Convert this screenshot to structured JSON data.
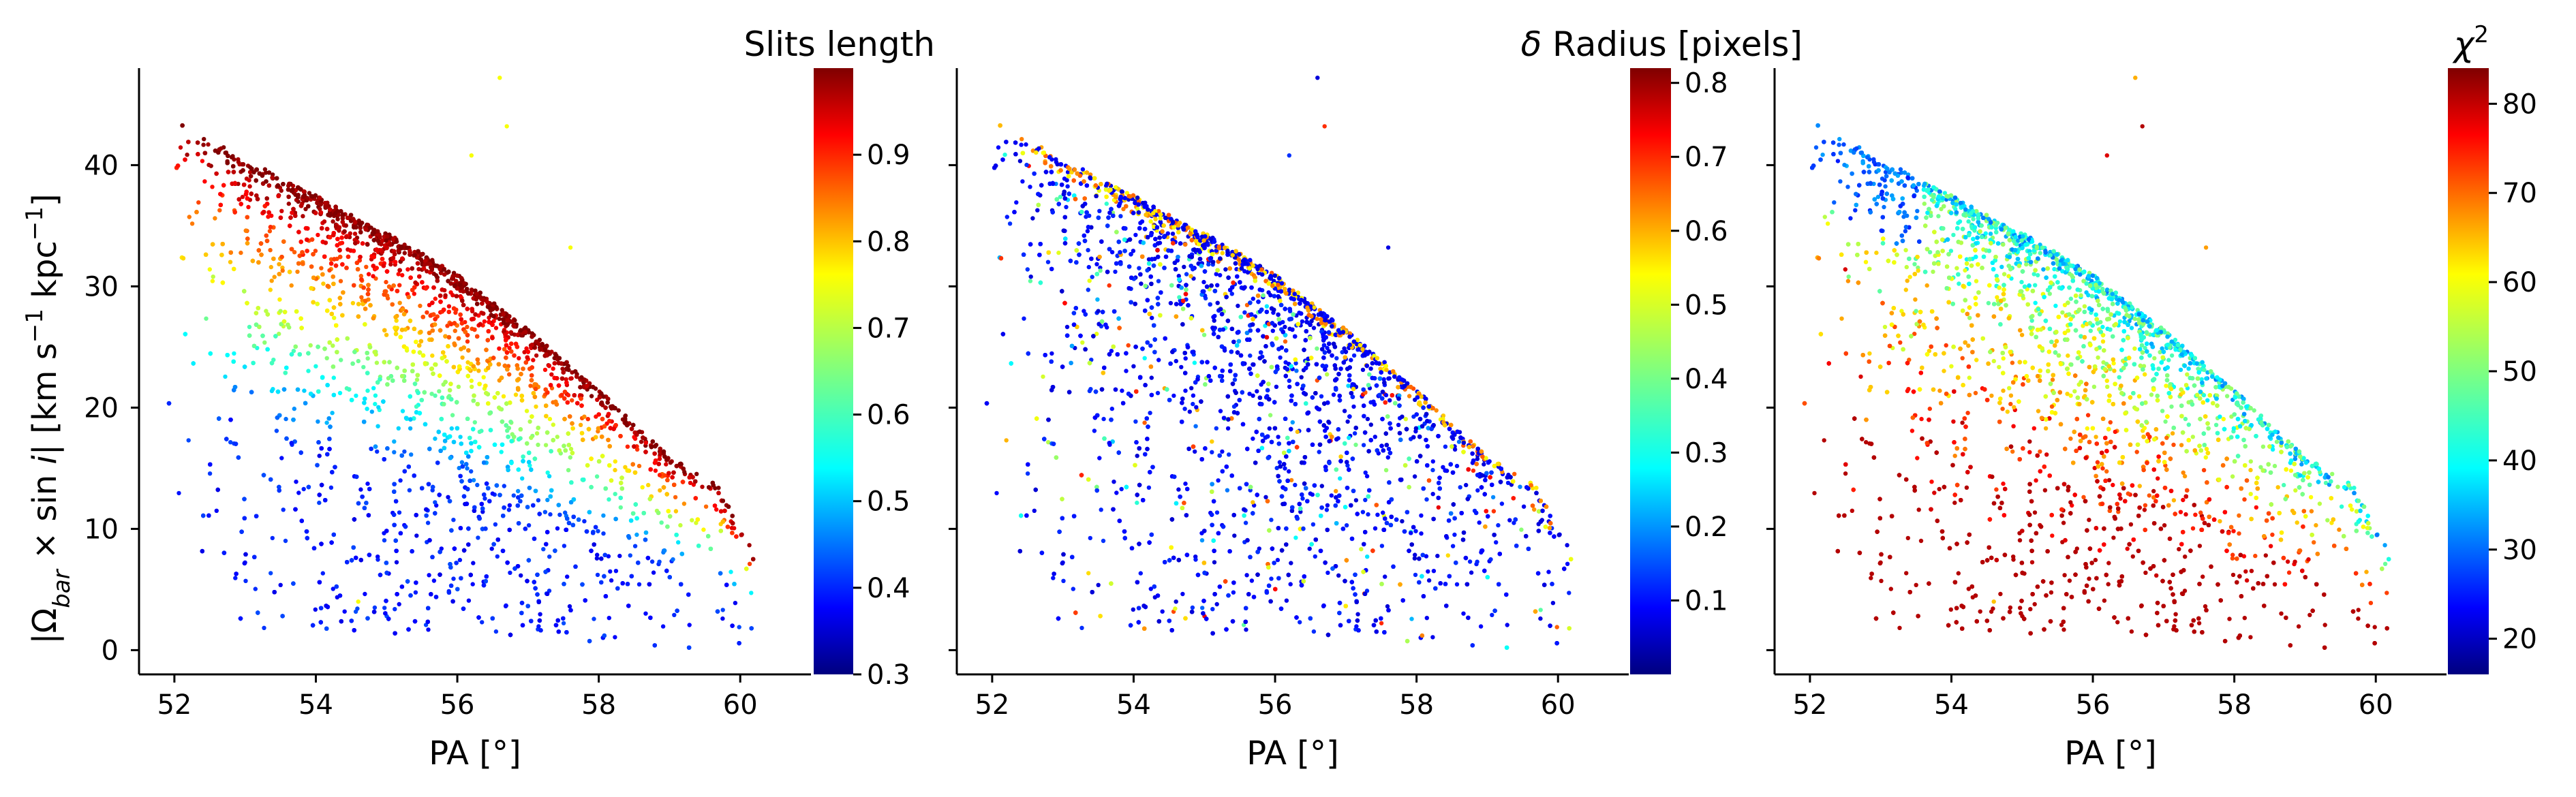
{
  "figure": {
    "ylabel": "|Ω",
    "ylabel_sub": "bar",
    "ylabel_mid": " × sin ",
    "ylabel_i": "i",
    "ylabel_units": "|  [km s",
    "ylabel_exp1": "−1",
    "ylabel_kpc": " kpc",
    "ylabel_exp2": "−1",
    "ylabel_close": "]"
  },
  "chart_data": [
    {
      "type": "scatter",
      "xlabel": "PA [°]",
      "ylabel": "|Ωbar × sin i|  [km s−1 kpc−1]",
      "xlim": [
        51.5,
        61.0
      ],
      "ylim": [
        -2,
        48
      ],
      "xticks": [
        "52",
        "54",
        "56",
        "58",
        "60"
      ],
      "yticks": [
        "0",
        "10",
        "20",
        "30",
        "40"
      ],
      "colorbar": {
        "label": "Slits length",
        "colormap": "jet",
        "range": [
          0.3,
          1.0
        ],
        "ticks": [
          "0.3",
          "0.4",
          "0.5",
          "0.6",
          "0.7",
          "0.8",
          "0.9"
        ]
      },
      "point_count": 7000,
      "upper_envelope": [
        [
          51.8,
          44.5
        ],
        [
          53,
          40.5
        ],
        [
          54,
          37.5
        ],
        [
          55,
          34.5
        ],
        [
          56,
          31
        ],
        [
          57,
          26.5
        ],
        [
          58,
          21.5
        ],
        [
          59,
          16
        ],
        [
          59.7,
          13.5
        ],
        [
          60.2,
          8
        ]
      ],
      "color_trend": "high values near the upper envelope, decreasing toward lower y",
      "outliers": [
        [
          56.6,
          47.2
        ],
        [
          56.7,
          43.2
        ],
        [
          56.2,
          40.8
        ],
        [
          57.6,
          33.2
        ],
        [
          52.5,
          31.4
        ],
        [
          54.6,
          4.0
        ]
      ]
    },
    {
      "type": "scatter",
      "xlabel": "PA [°]",
      "xlim": [
        51.5,
        61.0
      ],
      "ylim": [
        -2,
        48
      ],
      "xticks": [
        "52",
        "54",
        "56",
        "58",
        "60"
      ],
      "colorbar": {
        "label": "δ Radius [pixels]",
        "label_symbol": "δ",
        "label_text": " Radius [pixels]",
        "colormap": "jet",
        "range": [
          0.0,
          0.82
        ],
        "ticks": [
          "0.1",
          "0.2",
          "0.3",
          "0.4",
          "0.5",
          "0.6",
          "0.7",
          "0.8"
        ]
      },
      "point_count": 7000,
      "color_trend": "mostly low values (blue), higher values scattered near the envelope",
      "outliers": [
        [
          56.6,
          47.2
        ],
        [
          56.7,
          43.2
        ],
        [
          56.2,
          40.8
        ],
        [
          57.6,
          33.2
        ],
        [
          52.5,
          31.4
        ]
      ]
    },
    {
      "type": "scatter",
      "xlabel": "PA [°]",
      "xlim": [
        51.5,
        61.0
      ],
      "ylim": [
        -2,
        48
      ],
      "xticks": [
        "52",
        "54",
        "56",
        "58",
        "60"
      ],
      "colorbar": {
        "label": "χ2",
        "label_symbol": "χ",
        "label_sup": "2",
        "colormap": "jet",
        "range": [
          16,
          84
        ],
        "ticks": [
          "20",
          "30",
          "40",
          "50",
          "60",
          "70",
          "80"
        ]
      },
      "point_count": 7000,
      "color_trend": "cyan-green along the envelope, yellow/orange/red toward the interior",
      "outliers": [
        [
          56.6,
          47.2
        ],
        [
          56.7,
          43.2
        ],
        [
          56.2,
          40.8
        ],
        [
          57.6,
          33.2
        ],
        [
          52.5,
          31.4
        ]
      ]
    }
  ]
}
